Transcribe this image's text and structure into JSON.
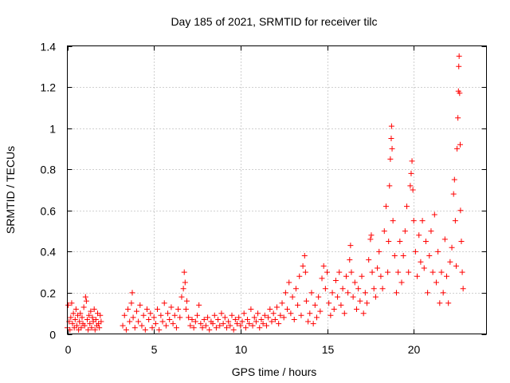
{
  "chart_data": {
    "type": "scatter",
    "title": "Day 185 of 2021, SRMTID for receiver tilc",
    "xlabel": "GPS time / hours",
    "ylabel": "SRMTID / TECUs",
    "xlim": [
      0,
      24.2
    ],
    "ylim": [
      0,
      1.4
    ],
    "xticks": [
      0,
      5,
      10,
      15,
      20
    ],
    "xtick_labels": [
      "0",
      "5",
      "10",
      "15",
      "20"
    ],
    "yticks": [
      0,
      0.2,
      0.4,
      0.6,
      0.8,
      1.0,
      1.2,
      1.4
    ],
    "ytick_labels": [
      "0",
      "0.2",
      "0.4",
      "0.6",
      "0.8",
      "1",
      "1.2",
      "1.4"
    ],
    "grid": true,
    "marker": "plus",
    "color": "#ff0000",
    "series": [
      {
        "name": "SRMTID",
        "points": [
          [
            0.0,
            0.03
          ],
          [
            0.05,
            0.14
          ],
          [
            0.1,
            0.06
          ],
          [
            0.15,
            0.02
          ],
          [
            0.2,
            0.08
          ],
          [
            0.25,
            0.15
          ],
          [
            0.3,
            0.05
          ],
          [
            0.35,
            0.1
          ],
          [
            0.4,
            0.03
          ],
          [
            0.45,
            0.07
          ],
          [
            0.5,
            0.12
          ],
          [
            0.55,
            0.04
          ],
          [
            0.6,
            0.09
          ],
          [
            0.65,
            0.02
          ],
          [
            0.7,
            0.06
          ],
          [
            0.75,
            0.1
          ],
          [
            0.8,
            0.03
          ],
          [
            0.85,
            0.08
          ],
          [
            0.9,
            0.05
          ],
          [
            0.95,
            0.13
          ],
          [
            1.0,
            0.04
          ],
          [
            1.05,
            0.18
          ],
          [
            1.1,
            0.16
          ],
          [
            1.15,
            0.07
          ],
          [
            1.2,
            0.02
          ],
          [
            1.25,
            0.09
          ],
          [
            1.3,
            0.05
          ],
          [
            1.35,
            0.11
          ],
          [
            1.4,
            0.03
          ],
          [
            1.45,
            0.08
          ],
          [
            1.5,
            0.06
          ],
          [
            1.55,
            0.12
          ],
          [
            1.6,
            0.02
          ],
          [
            1.65,
            0.07
          ],
          [
            1.7,
            0.04
          ],
          [
            1.75,
            0.1
          ],
          [
            1.8,
            0.05
          ],
          [
            1.85,
            0.03
          ],
          [
            1.9,
            0.09
          ],
          [
            1.95,
            0.06
          ],
          [
            3.2,
            0.04
          ],
          [
            3.3,
            0.09
          ],
          [
            3.4,
            0.02
          ],
          [
            3.5,
            0.12
          ],
          [
            3.6,
            0.06
          ],
          [
            3.7,
            0.15
          ],
          [
            3.75,
            0.2
          ],
          [
            3.8,
            0.08
          ],
          [
            3.9,
            0.03
          ],
          [
            4.0,
            0.11
          ],
          [
            4.1,
            0.06
          ],
          [
            4.2,
            0.14
          ],
          [
            4.3,
            0.04
          ],
          [
            4.4,
            0.09
          ],
          [
            4.5,
            0.02
          ],
          [
            4.6,
            0.12
          ],
          [
            4.7,
            0.07
          ],
          [
            4.8,
            0.1
          ],
          [
            4.9,
            0.03
          ],
          [
            5.0,
            0.08
          ],
          [
            5.1,
            0.05
          ],
          [
            5.2,
            0.12
          ],
          [
            5.3,
            0.02
          ],
          [
            5.4,
            0.09
          ],
          [
            5.5,
            0.06
          ],
          [
            5.6,
            0.15
          ],
          [
            5.7,
            0.04
          ],
          [
            5.8,
            0.1
          ],
          [
            5.9,
            0.07
          ],
          [
            6.0,
            0.13
          ],
          [
            6.1,
            0.05
          ],
          [
            6.2,
            0.09
          ],
          [
            6.3,
            0.03
          ],
          [
            6.4,
            0.12
          ],
          [
            6.5,
            0.08
          ],
          [
            6.6,
            0.18
          ],
          [
            6.7,
            0.22
          ],
          [
            6.75,
            0.3
          ],
          [
            6.8,
            0.25
          ],
          [
            6.85,
            0.12
          ],
          [
            6.9,
            0.16
          ],
          [
            7.0,
            0.08
          ],
          [
            7.1,
            0.04
          ],
          [
            7.2,
            0.07
          ],
          [
            7.3,
            0.03
          ],
          [
            7.4,
            0.06
          ],
          [
            7.5,
            0.09
          ],
          [
            7.6,
            0.14
          ],
          [
            7.7,
            0.05
          ],
          [
            7.8,
            0.03
          ],
          [
            7.9,
            0.07
          ],
          [
            8.0,
            0.04
          ],
          [
            8.1,
            0.08
          ],
          [
            8.2,
            0.02
          ],
          [
            8.3,
            0.06
          ],
          [
            8.4,
            0.05
          ],
          [
            8.5,
            0.09
          ],
          [
            8.6,
            0.03
          ],
          [
            8.7,
            0.07
          ],
          [
            8.8,
            0.04
          ],
          [
            8.9,
            0.1
          ],
          [
            9.0,
            0.05
          ],
          [
            9.1,
            0.08
          ],
          [
            9.2,
            0.03
          ],
          [
            9.3,
            0.06
          ],
          [
            9.4,
            0.04
          ],
          [
            9.5,
            0.09
          ],
          [
            9.6,
            0.02
          ],
          [
            9.7,
            0.07
          ],
          [
            9.8,
            0.05
          ],
          [
            9.9,
            0.08
          ],
          [
            10.0,
            0.04
          ],
          [
            10.1,
            0.06
          ],
          [
            10.2,
            0.1
          ],
          [
            10.3,
            0.03
          ],
          [
            10.4,
            0.07
          ],
          [
            10.5,
            0.05
          ],
          [
            10.6,
            0.12
          ],
          [
            10.7,
            0.04
          ],
          [
            10.8,
            0.08
          ],
          [
            10.9,
            0.06
          ],
          [
            11.0,
            0.1
          ],
          [
            11.1,
            0.03
          ],
          [
            11.2,
            0.07
          ],
          [
            11.3,
            0.05
          ],
          [
            11.4,
            0.09
          ],
          [
            11.5,
            0.04
          ],
          [
            11.6,
            0.08
          ],
          [
            11.7,
            0.12
          ],
          [
            11.8,
            0.06
          ],
          [
            11.9,
            0.1
          ],
          [
            12.0,
            0.07
          ],
          [
            12.1,
            0.13
          ],
          [
            12.2,
            0.05
          ],
          [
            12.3,
            0.09
          ],
          [
            12.4,
            0.15
          ],
          [
            12.5,
            0.08
          ],
          [
            12.6,
            0.2
          ],
          [
            12.7,
            0.12
          ],
          [
            12.8,
            0.25
          ],
          [
            12.9,
            0.1
          ],
          [
            13.0,
            0.18
          ],
          [
            13.1,
            0.07
          ],
          [
            13.2,
            0.22
          ],
          [
            13.3,
            0.14
          ],
          [
            13.4,
            0.28
          ],
          [
            13.5,
            0.09
          ],
          [
            13.6,
            0.33
          ],
          [
            13.7,
            0.38
          ],
          [
            13.75,
            0.3
          ],
          [
            13.8,
            0.16
          ],
          [
            13.9,
            0.06
          ],
          [
            14.0,
            0.1
          ],
          [
            14.1,
            0.2
          ],
          [
            14.2,
            0.05
          ],
          [
            14.3,
            0.14
          ],
          [
            14.4,
            0.08
          ],
          [
            14.5,
            0.18
          ],
          [
            14.6,
            0.11
          ],
          [
            14.7,
            0.27
          ],
          [
            14.8,
            0.33
          ],
          [
            14.9,
            0.22
          ],
          [
            15.0,
            0.3
          ],
          [
            15.1,
            0.15
          ],
          [
            15.2,
            0.09
          ],
          [
            15.3,
            0.2
          ],
          [
            15.4,
            0.12
          ],
          [
            15.5,
            0.26
          ],
          [
            15.6,
            0.18
          ],
          [
            15.7,
            0.3
          ],
          [
            15.8,
            0.14
          ],
          [
            15.9,
            0.22
          ],
          [
            16.0,
            0.1
          ],
          [
            16.1,
            0.28
          ],
          [
            16.2,
            0.2
          ],
          [
            16.3,
            0.36
          ],
          [
            16.35,
            0.43
          ],
          [
            16.4,
            0.3
          ],
          [
            16.5,
            0.18
          ],
          [
            16.6,
            0.25
          ],
          [
            16.7,
            0.12
          ],
          [
            16.8,
            0.22
          ],
          [
            16.9,
            0.16
          ],
          [
            17.0,
            0.28
          ],
          [
            17.1,
            0.1
          ],
          [
            17.2,
            0.2
          ],
          [
            17.3,
            0.15
          ],
          [
            17.4,
            0.36
          ],
          [
            17.5,
            0.46
          ],
          [
            17.55,
            0.48
          ],
          [
            17.6,
            0.3
          ],
          [
            17.7,
            0.22
          ],
          [
            17.8,
            0.18
          ],
          [
            17.9,
            0.32
          ],
          [
            18.0,
            0.4
          ],
          [
            18.1,
            0.28
          ],
          [
            18.2,
            0.22
          ],
          [
            18.3,
            0.5
          ],
          [
            18.4,
            0.62
          ],
          [
            18.5,
            0.3
          ],
          [
            18.55,
            0.45
          ],
          [
            18.6,
            0.72
          ],
          [
            18.65,
            0.85
          ],
          [
            18.7,
            0.95
          ],
          [
            18.72,
            1.01
          ],
          [
            18.75,
            0.9
          ],
          [
            18.8,
            0.55
          ],
          [
            18.9,
            0.38
          ],
          [
            19.0,
            0.2
          ],
          [
            19.1,
            0.3
          ],
          [
            19.2,
            0.45
          ],
          [
            19.3,
            0.25
          ],
          [
            19.4,
            0.38
          ],
          [
            19.5,
            0.5
          ],
          [
            19.6,
            0.62
          ],
          [
            19.7,
            0.3
          ],
          [
            19.8,
            0.72
          ],
          [
            19.85,
            0.78
          ],
          [
            19.9,
            0.84
          ],
          [
            19.95,
            0.7
          ],
          [
            20.0,
            0.55
          ],
          [
            20.1,
            0.4
          ],
          [
            20.2,
            0.28
          ],
          [
            20.3,
            0.48
          ],
          [
            20.4,
            0.35
          ],
          [
            20.5,
            0.55
          ],
          [
            20.6,
            0.32
          ],
          [
            20.7,
            0.45
          ],
          [
            20.8,
            0.2
          ],
          [
            20.9,
            0.38
          ],
          [
            21.0,
            0.5
          ],
          [
            21.1,
            0.3
          ],
          [
            21.2,
            0.58
          ],
          [
            21.3,
            0.25
          ],
          [
            21.4,
            0.4
          ],
          [
            21.5,
            0.15
          ],
          [
            21.6,
            0.3
          ],
          [
            21.7,
            0.2
          ],
          [
            21.8,
            0.46
          ],
          [
            21.9,
            0.28
          ],
          [
            22.0,
            0.15
          ],
          [
            22.1,
            0.35
          ],
          [
            22.2,
            0.42
          ],
          [
            22.3,
            0.68
          ],
          [
            22.35,
            0.75
          ],
          [
            22.4,
            0.55
          ],
          [
            22.45,
            0.33
          ],
          [
            22.5,
            0.9
          ],
          [
            22.55,
            1.05
          ],
          [
            22.58,
            1.18
          ],
          [
            22.6,
            1.3
          ],
          [
            22.62,
            1.35
          ],
          [
            22.65,
            1.17
          ],
          [
            22.68,
            0.92
          ],
          [
            22.7,
            0.6
          ],
          [
            22.75,
            0.45
          ],
          [
            22.8,
            0.3
          ],
          [
            22.85,
            0.22
          ]
        ]
      }
    ]
  }
}
